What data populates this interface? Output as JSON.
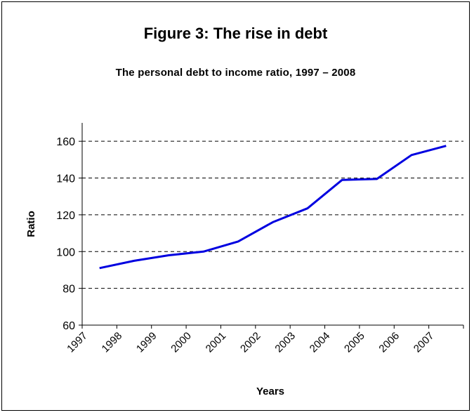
{
  "chart_data": {
    "type": "line",
    "title": "Figure 3: The rise in debt",
    "subtitle": "The personal debt to income ratio, 1997 – 2008",
    "xlabel": "Years",
    "ylabel": "Ratio",
    "categories": [
      "1997",
      "1998",
      "1999",
      "2000",
      "2001",
      "2002",
      "2003",
      "2004",
      "2005",
      "2006",
      "2007"
    ],
    "series": [
      {
        "values": [
          91,
          95,
          98,
          100,
          105.5,
          116,
          123.5,
          139,
          139.5,
          152.5,
          157.5
        ]
      }
    ],
    "yticks": [
      60,
      80,
      100,
      120,
      140,
      160
    ],
    "ylim": [
      60,
      170
    ],
    "grid": "horizontal dashed",
    "line_color": "#0000e0",
    "grid_color": "#000000"
  }
}
